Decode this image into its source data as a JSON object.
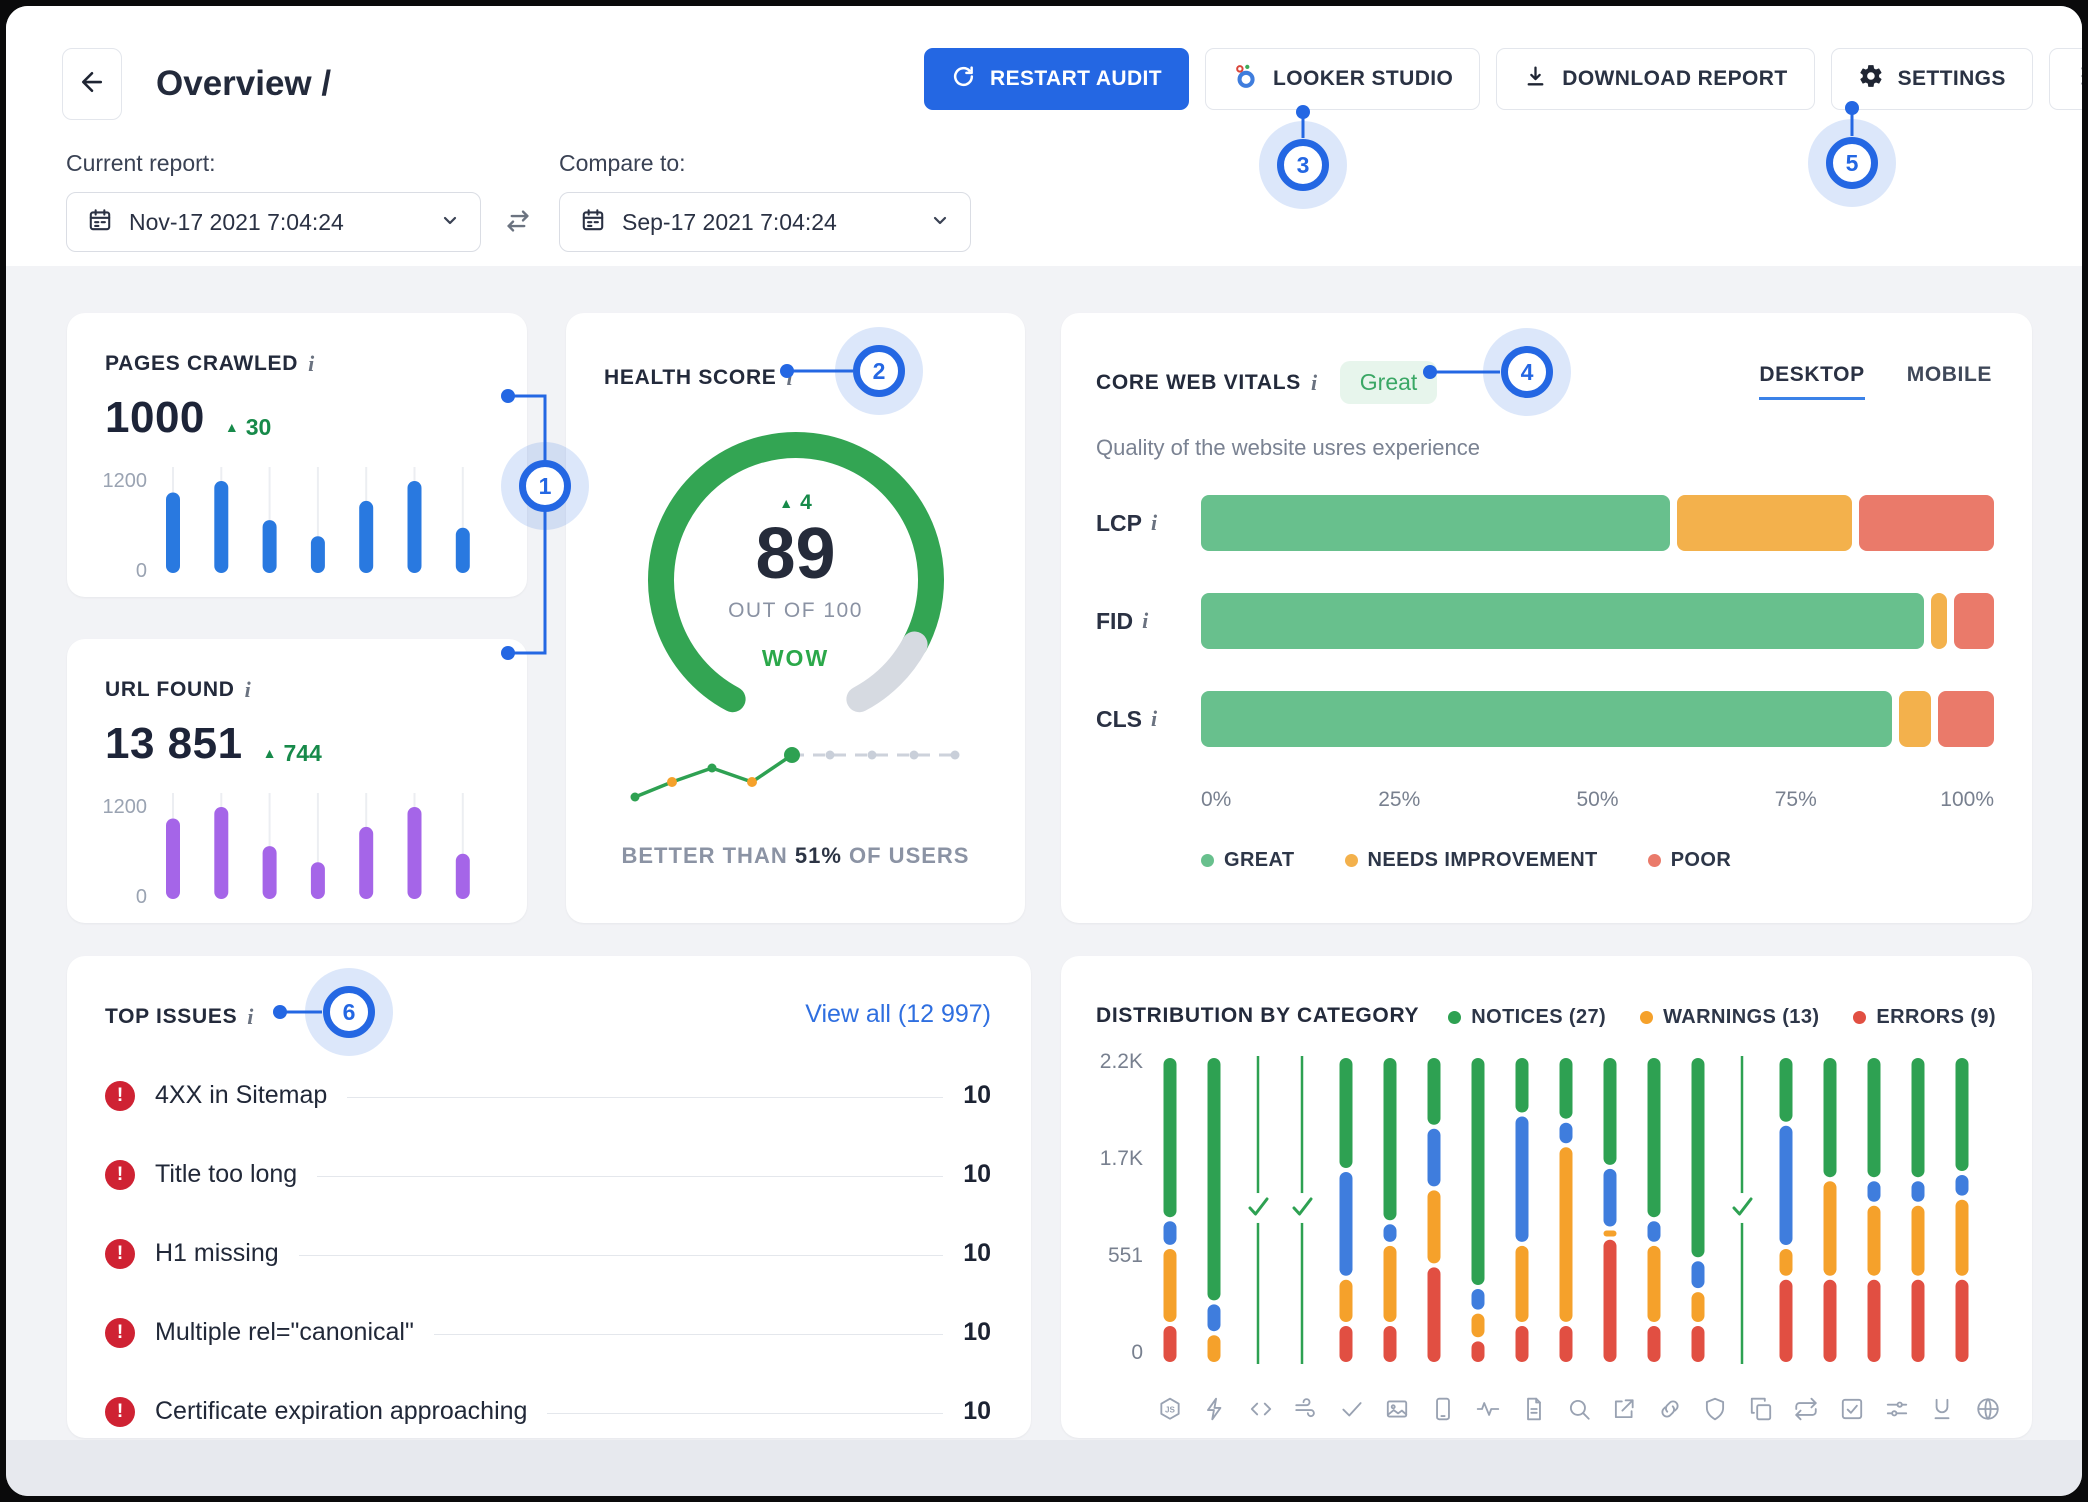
{
  "header": {
    "title": "Overview /",
    "buttons": {
      "restart": "RESTART AUDIT",
      "looker": "LOOKER STUDIO",
      "download": "DOWNLOAD REPORT",
      "settings": "SETTINGS"
    },
    "current_report_label": "Current report:",
    "compare_label": "Compare to:",
    "current_report_value": "Nov-17 2021 7:04:24",
    "compare_value": "Sep-17 2021 7:04:24"
  },
  "annotations": {
    "n1": "1",
    "n2": "2",
    "n3": "3",
    "n4": "4",
    "n5": "5",
    "n6": "6"
  },
  "pages_crawled": {
    "title": "PAGES CRAWLED",
    "info": "i",
    "value": "1000",
    "delta": "30"
  },
  "url_found": {
    "title": "URL FOUND",
    "info": "i",
    "value": "13 851",
    "delta": "744"
  },
  "health": {
    "title": "HEALTH SCORE",
    "info": "i",
    "delta": "4",
    "score": "89",
    "out_of": "OUT OF 100",
    "wow": "WOW",
    "better_pre": "BETTER THAN",
    "better_pct": "51%",
    "better_post": "OF USERS"
  },
  "cwv": {
    "title": "CORE WEB VITALS",
    "info": "i",
    "badge": "Great",
    "tab_desktop": "DESKTOP",
    "tab_mobile": "MOBILE",
    "subtitle": "Quality of the website usres experience"
  },
  "top_issues": {
    "title": "TOP ISSUES",
    "info": "i",
    "view_all": "View all (12 997)",
    "issues": [
      {
        "label": "4XX in Sitemap",
        "count": "10"
      },
      {
        "label": "Title too long",
        "count": "10"
      },
      {
        "label": "H1 missing",
        "count": "10"
      },
      {
        "label": "Multiple rel=\"canonical\"",
        "count": "10"
      },
      {
        "label": "Certificate expiration approaching",
        "count": "10"
      }
    ]
  },
  "distribution": {
    "title": "DISTRIBUTION BY CATEGORY",
    "legend": [
      {
        "label": "NOTICES (27)",
        "color": "#2ea152"
      },
      {
        "label": "WARNINGS (13)",
        "color": "#f5a12b"
      },
      {
        "label": "ERRORS (9)",
        "color": "#e14f42"
      }
    ]
  },
  "colors": {
    "accent": "#2467e3",
    "green": "#2ea152",
    "orange": "#f5a12b",
    "red": "#e14f42",
    "blue": "#3f7ddd",
    "purple": "#a565e8",
    "bar_blue": "#2979e0",
    "issue_red": "#cf2233",
    "cwv_green": "#68c08d",
    "cwv_orange": "#f3b14c",
    "cwv_red": "#ea7a6a",
    "gauge_track": "#d6dae1"
  },
  "chart_data": [
    {
      "id": "pages_crawled_bars",
      "type": "bar",
      "color": "#2979e0",
      "ylabels": [
        "1200",
        "0"
      ],
      "ymax": 1200,
      "values": [
        1050,
        1200,
        690,
        480,
        940,
        1200,
        590
      ],
      "title": "Pages crawled trend"
    },
    {
      "id": "url_found_bars",
      "type": "bar",
      "color": "#a565e8",
      "ylabels": [
        "1200",
        "0"
      ],
      "ymax": 1200,
      "values": [
        1050,
        1200,
        690,
        480,
        940,
        1200,
        590
      ],
      "title": "URL found trend"
    },
    {
      "id": "health_gauge",
      "type": "gauge",
      "score": 89,
      "max": 100,
      "delta": 4,
      "fill": 0.89,
      "color": "#33a553",
      "track": "#d6dae1"
    },
    {
      "id": "health_trend",
      "type": "line",
      "points": [
        {
          "x": 10,
          "y": 57,
          "c": "green"
        },
        {
          "x": 47,
          "y": 42,
          "c": "orange"
        },
        {
          "x": 87,
          "y": 28,
          "c": "green"
        },
        {
          "x": 127,
          "y": 42,
          "c": "orange"
        },
        {
          "x": 167,
          "y": 15,
          "c": "green-big"
        },
        {
          "x": 205,
          "y": 15,
          "c": "gray"
        },
        {
          "x": 247,
          "y": 15,
          "c": "gray"
        },
        {
          "x": 289,
          "y": 15,
          "c": "gray"
        },
        {
          "x": 330,
          "y": 15,
          "c": "gray"
        }
      ]
    },
    {
      "id": "core_web_vitals",
      "type": "stacked-bar-h",
      "categories": [
        "LCP",
        "FID",
        "CLS"
      ],
      "xticks": [
        "0%",
        "25%",
        "50%",
        "75%",
        "100%"
      ],
      "legend": [
        "GREAT",
        "NEEDS IMPROVEMENT",
        "POOR"
      ],
      "series": [
        {
          "name": "GREAT",
          "color": "#68c08d",
          "values": [
            60,
            92,
            88
          ]
        },
        {
          "name": "NEEDS IMPROVEMENT",
          "color": "#f3b14c",
          "values": [
            23,
            3,
            5
          ]
        },
        {
          "name": "POOR",
          "color": "#ea7a6a",
          "values": [
            17,
            5,
            7
          ]
        }
      ]
    },
    {
      "id": "distribution",
      "type": "stacked-bar-v",
      "yticks": [
        "2.2K",
        "1.7K",
        "551",
        "0"
      ],
      "palette": {
        "g": "#2ea152",
        "b": "#3f7ddd",
        "o": "#f5a12b",
        "r": "#e14f42"
      },
      "columns": [
        {
          "icon": "js",
          "g": 0.53,
          "b": 0.09,
          "o": 0.25,
          "r": 0.13
        },
        {
          "icon": "bolt",
          "g": 0.8,
          "b": 0.1,
          "o": 0.1
        },
        {
          "icon": "code",
          "ok": true
        },
        {
          "icon": "wind",
          "ok": true
        },
        {
          "icon": "check",
          "g": 0.37,
          "b": 0.35,
          "o": 0.15,
          "r": 0.13
        },
        {
          "icon": "image",
          "g": 0.54,
          "b": 0.07,
          "o": 0.26,
          "r": 0.13
        },
        {
          "icon": "phone",
          "g": 0.23,
          "b": 0.2,
          "o": 0.25,
          "r": 0.32
        },
        {
          "icon": "pulse",
          "g": 0.75,
          "b": 0.08,
          "o": 0.09,
          "r": 0.08
        },
        {
          "icon": "file",
          "g": 0.19,
          "b": 0.42,
          "o": 0.26,
          "r": 0.13
        },
        {
          "icon": "search",
          "g": 0.21,
          "b": 0.08,
          "o": 0.58,
          "r": 0.13
        },
        {
          "icon": "external",
          "g": 0.36,
          "b": 0.2,
          "o": 0.03,
          "r": 0.41
        },
        {
          "icon": "link",
          "g": 0.53,
          "b": 0.08,
          "o": 0.26,
          "r": 0.13
        },
        {
          "icon": "shield",
          "g": 0.66,
          "b": 0.1,
          "o": 0.11,
          "r": 0.13
        },
        {
          "icon": "copy",
          "ok": true
        },
        {
          "icon": "repeat",
          "g": 0.22,
          "b": 0.4,
          "o": 0.1,
          "r": 0.28
        },
        {
          "icon": "checkbox",
          "g": 0.4,
          "o": 0.32,
          "r": 0.28
        },
        {
          "icon": "sliders",
          "g": 0.4,
          "b": 0.08,
          "o": 0.24,
          "r": 0.28
        },
        {
          "icon": "underline",
          "g": 0.4,
          "b": 0.08,
          "o": 0.24,
          "r": 0.28
        },
        {
          "icon": "globe",
          "g": 0.38,
          "b": 0.08,
          "o": 0.26,
          "r": 0.28
        }
      ]
    }
  ]
}
